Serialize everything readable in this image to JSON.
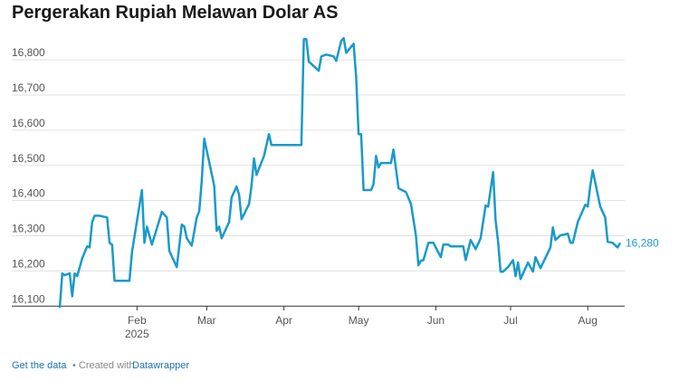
{
  "chart_data": {
    "type": "line",
    "title": "Pergerakan Rupiah Melawan Dolar AS",
    "x": [
      1,
      2,
      3,
      5,
      6,
      7,
      8,
      10,
      12,
      13,
      14,
      15,
      17,
      20,
      21,
      22,
      23,
      29,
      30,
      34,
      35,
      36,
      38,
      42,
      44,
      45,
      48,
      50,
      51,
      52,
      54,
      56,
      57,
      58,
      59,
      63,
      64,
      65,
      66,
      69,
      70,
      72,
      73,
      74,
      77,
      78,
      79,
      80,
      83,
      85,
      86,
      98,
      99,
      100,
      101,
      105,
      106,
      108,
      111,
      112,
      114,
      115,
      116,
      119,
      120,
      121,
      122,
      123,
      126,
      127,
      128,
      129,
      130,
      134,
      135,
      137,
      140,
      142,
      144,
      145,
      146,
      147,
      149,
      151,
      154,
      155,
      157,
      158,
      163,
      164,
      166,
      168,
      170,
      172,
      173,
      175,
      176,
      177,
      178,
      179,
      181,
      183,
      184,
      185,
      186,
      189,
      191,
      192,
      194,
      198,
      199,
      200,
      202,
      205,
      206,
      207,
      209,
      212,
      213,
      214,
      215,
      218,
      220,
      221,
      223,
      225,
      226
    ],
    "xlim": [
      1,
      226
    ],
    "xticks": [
      {
        "value": 32,
        "label": "Feb"
      },
      {
        "value": 60,
        "label": "Mar"
      },
      {
        "value": 91,
        "label": "Apr"
      },
      {
        "value": 121,
        "label": "May"
      },
      {
        "value": 152,
        "label": "Jun"
      },
      {
        "value": 182,
        "label": "Jul"
      },
      {
        "value": 213,
        "label": "Aug"
      }
    ],
    "x_year_label": "2025",
    "series": [
      {
        "color": "#1a9ac9",
        "values": [
          16095,
          16193,
          16188,
          16193,
          16128,
          16193,
          16185,
          16236,
          16270,
          16267,
          16339,
          16357,
          16357,
          16352,
          16280,
          16275,
          16172,
          16172,
          16254,
          16430,
          16280,
          16326,
          16275,
          16368,
          16352,
          16257,
          16211,
          16332,
          16326,
          16293,
          16272,
          16352,
          16370,
          16455,
          16576,
          16442,
          16314,
          16326,
          16293,
          16339,
          16409,
          16440,
          16417,
          16347,
          16390,
          16442,
          16520,
          16473,
          16527,
          16589,
          16558,
          16558,
          16859,
          16859,
          16795,
          16769,
          16810,
          16815,
          16810,
          16797,
          16854,
          16862,
          16820,
          16846,
          16751,
          16589,
          16589,
          16430,
          16430,
          16447,
          16527,
          16494,
          16507,
          16507,
          16545,
          16435,
          16424,
          16391,
          16301,
          16216,
          16229,
          16231,
          16280,
          16280,
          16239,
          16275,
          16275,
          16270,
          16270,
          16231,
          16288,
          16262,
          16293,
          16386,
          16383,
          16481,
          16344,
          16283,
          16198,
          16198,
          16211,
          16231,
          16185,
          16224,
          16177,
          16224,
          16198,
          16239,
          16208,
          16267,
          16324,
          16288,
          16301,
          16306,
          16280,
          16280,
          16339,
          16388,
          16383,
          16442,
          16486,
          16383,
          16352,
          16283,
          16280,
          16267,
          16280
        ],
        "end_label": "16,280"
      }
    ],
    "ylim": [
      16075,
      16875
    ],
    "yticks": [
      {
        "value": 16100,
        "label": "16,100"
      },
      {
        "value": 16200,
        "label": "16,200"
      },
      {
        "value": 16300,
        "label": "16,300"
      },
      {
        "value": 16400,
        "label": "16,400"
      },
      {
        "value": 16500,
        "label": "16,500"
      },
      {
        "value": 16600,
        "label": "16,600"
      },
      {
        "value": 16700,
        "label": "16,700"
      },
      {
        "value": 16800,
        "label": "16,800"
      }
    ],
    "grid": true
  },
  "footer": {
    "link": "Get the data",
    "separator": "• Created with",
    "tool": "Datawrapper"
  }
}
